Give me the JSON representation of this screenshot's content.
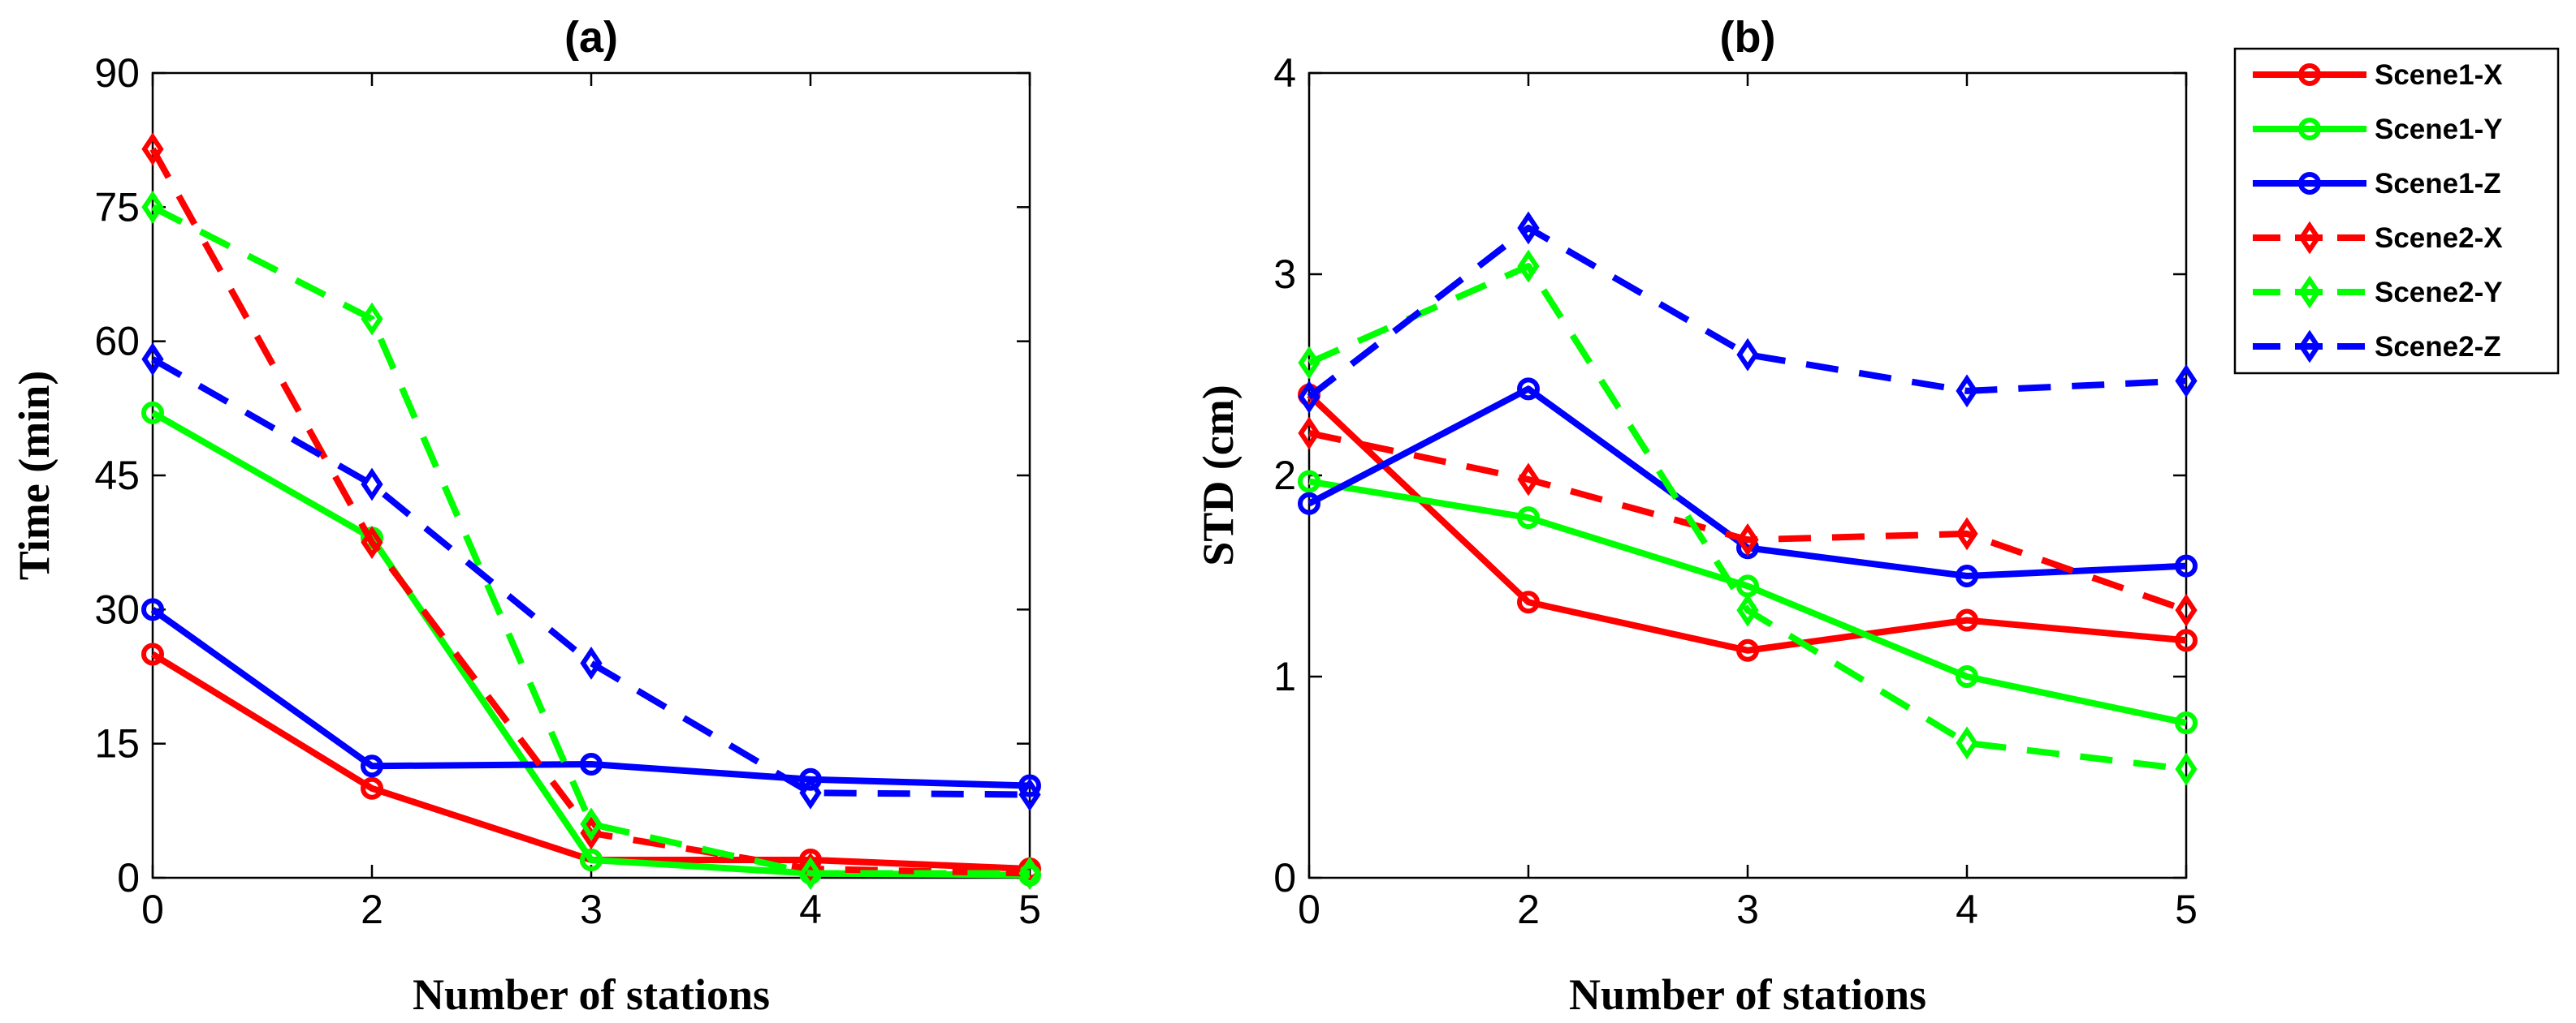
{
  "chart_data": [
    {
      "type": "line",
      "title": "(a)",
      "xlabel": "Number of stations",
      "ylabel": "Time (min)",
      "categories": [
        "0",
        "2",
        "3",
        "4",
        "5"
      ],
      "ylim": [
        0,
        90
      ],
      "yticks": [
        0,
        15,
        30,
        45,
        60,
        75,
        90
      ],
      "grid": false,
      "series": [
        {
          "name": "Scene1-X",
          "color": "#ff0000",
          "dash": "solid",
          "marker": "circle",
          "values": [
            25,
            10,
            2,
            2,
            1
          ]
        },
        {
          "name": "Scene1-Y",
          "color": "#00ff00",
          "dash": "solid",
          "marker": "circle",
          "values": [
            52,
            38,
            2,
            0.5,
            0.3
          ]
        },
        {
          "name": "Scene1-Z",
          "color": "#0000ff",
          "dash": "solid",
          "marker": "circle",
          "values": [
            30,
            12.5,
            12.7,
            11,
            10.3
          ]
        },
        {
          "name": "Scene2-X",
          "color": "#ff0000",
          "dash": "dashed",
          "marker": "diamond",
          "values": [
            81.5,
            37.5,
            5,
            1,
            0.5
          ]
        },
        {
          "name": "Scene2-Y",
          "color": "#00ff00",
          "dash": "dashed",
          "marker": "diamond",
          "values": [
            75,
            62.5,
            6,
            0.5,
            0.5
          ]
        },
        {
          "name": "Scene2-Z",
          "color": "#0000ff",
          "dash": "dashed",
          "marker": "diamond",
          "values": [
            58,
            44,
            24,
            9.5,
            9.3
          ]
        }
      ]
    },
    {
      "type": "line",
      "title": "(b)",
      "xlabel": "Number of stations",
      "ylabel": "STD (cm)",
      "categories": [
        "0",
        "2",
        "3",
        "4",
        "5"
      ],
      "ylim": [
        0,
        4
      ],
      "yticks": [
        0,
        1,
        2,
        3,
        4
      ],
      "grid": false,
      "series": [
        {
          "name": "Scene1-X",
          "color": "#ff0000",
          "dash": "solid",
          "marker": "circle",
          "values": [
            2.4,
            1.37,
            1.13,
            1.28,
            1.18
          ]
        },
        {
          "name": "Scene1-Y",
          "color": "#00ff00",
          "dash": "solid",
          "marker": "circle",
          "values": [
            1.97,
            1.79,
            1.45,
            1.0,
            0.77
          ]
        },
        {
          "name": "Scene1-Z",
          "color": "#0000ff",
          "dash": "solid",
          "marker": "circle",
          "values": [
            1.86,
            2.43,
            1.64,
            1.5,
            1.55
          ]
        },
        {
          "name": "Scene2-X",
          "color": "#ff0000",
          "dash": "dashed",
          "marker": "diamond",
          "values": [
            2.21,
            1.98,
            1.68,
            1.71,
            1.33
          ]
        },
        {
          "name": "Scene2-Y",
          "color": "#00ff00",
          "dash": "dashed",
          "marker": "diamond",
          "values": [
            2.56,
            3.04,
            1.33,
            0.67,
            0.54
          ]
        },
        {
          "name": "Scene2-Z",
          "color": "#0000ff",
          "dash": "dashed",
          "marker": "diamond",
          "values": [
            2.39,
            3.23,
            2.6,
            2.42,
            2.47
          ]
        }
      ]
    }
  ],
  "legend": {
    "placement": "outside-right",
    "items": [
      "Scene1-X",
      "Scene1-Y",
      "Scene1-Z",
      "Scene2-X",
      "Scene2-Y",
      "Scene2-Z"
    ]
  }
}
